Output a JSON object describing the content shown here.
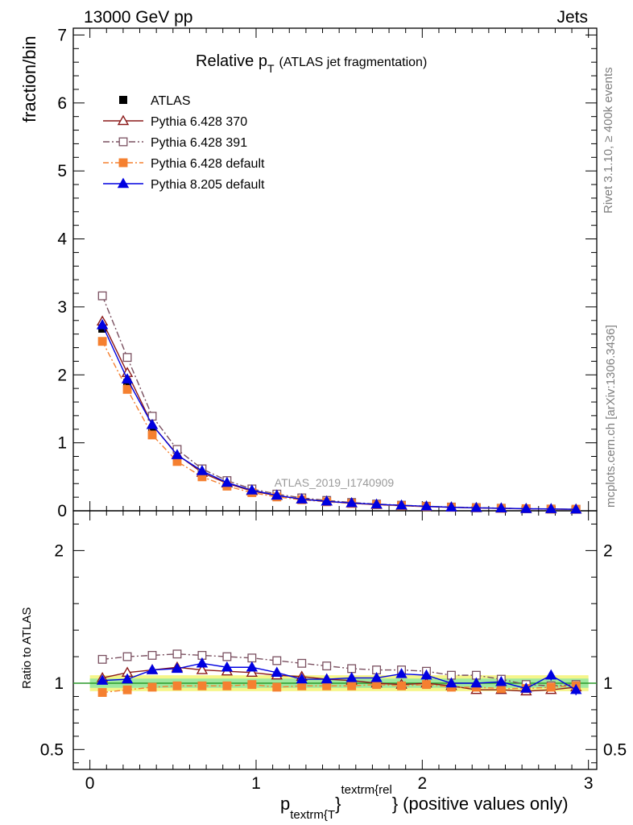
{
  "header": {
    "left": "13000 GeV pp",
    "right": "Jets"
  },
  "side_texts": {
    "rivet": "Rivet 3.1.10, ≥ 400k events",
    "mcplots": "mcplots.cern.ch [arXiv:1306.3436]"
  },
  "chart_data": {
    "type": "line",
    "title": {
      "prefix": "Relative p",
      "subscript": "T",
      "suffix": "(ATLAS jet fragmentation)"
    },
    "watermark": "ATLAS_2019_I1740909",
    "xlabel": {
      "main": "p",
      "sub": "textrm{T",
      "brace": "}",
      "sup": "textrm{rel",
      "brace2": "}",
      "rest": "(positive values only)"
    },
    "ylabel_main": "fraction/bin",
    "ylabel_ratio": "Ratio to ATLAS",
    "xlim": [
      -0.1,
      3.05
    ],
    "ylim_main": [
      0,
      7.1
    ],
    "ylim_ratio": [
      0.35,
      2.3
    ],
    "xticks": [
      0,
      1,
      2,
      3
    ],
    "xtick_labels": [
      "0",
      "1",
      "2",
      "3"
    ],
    "yticks_main": [
      0,
      1,
      2,
      3,
      4,
      5,
      6,
      7
    ],
    "ytick_labels_main": [
      "0",
      "1",
      "2",
      "3",
      "4",
      "5",
      "6",
      "7"
    ],
    "yticks_ratio": [
      0.5,
      1,
      2
    ],
    "ytick_labels_ratio": [
      "0.5",
      "1",
      "2"
    ],
    "x": [
      0.075,
      0.225,
      0.375,
      0.525,
      0.675,
      0.825,
      0.975,
      1.125,
      1.275,
      1.425,
      1.575,
      1.725,
      1.875,
      2.025,
      2.175,
      2.325,
      2.475,
      2.625,
      2.775,
      2.925
    ],
    "data": {
      "name": "ATLAS",
      "values": [
        2.68,
        1.88,
        1.15,
        0.74,
        0.51,
        0.37,
        0.27,
        0.21,
        0.165,
        0.135,
        0.11,
        0.09,
        0.075,
        0.062,
        0.052,
        0.044,
        0.037,
        0.031,
        0.026,
        0.022
      ],
      "band_halfwidth": 0.035,
      "band_outer_halfwidth": 0.06
    },
    "series": [
      {
        "name": "Pythia 6.428 370",
        "color": "#8b1a1a",
        "marker": "triangle-open",
        "dash": "",
        "ratio": [
          1.04,
          1.08,
          1.1,
          1.12,
          1.1,
          1.09,
          1.08,
          1.06,
          1.05,
          1.03,
          1.02,
          1.0,
          0.99,
          1.0,
          0.98,
          0.95,
          0.95,
          0.94,
          0.95,
          0.97
        ]
      },
      {
        "name": "Pythia 6.428 391",
        "color": "#7a5060",
        "marker": "square-open",
        "dash": "8,3,2,3",
        "ratio": [
          1.18,
          1.2,
          1.21,
          1.22,
          1.21,
          1.2,
          1.19,
          1.17,
          1.15,
          1.13,
          1.11,
          1.1,
          1.1,
          1.09,
          1.06,
          1.06,
          1.03,
          0.99,
          0.98,
          0.99
        ]
      },
      {
        "name": "Pythia 6.428 default",
        "color": "#f58030",
        "marker": "square-filled",
        "dash": "7,3,2,3",
        "ratio": [
          0.93,
          0.95,
          0.97,
          0.98,
          0.98,
          0.98,
          0.99,
          0.97,
          0.98,
          0.98,
          0.98,
          0.99,
          0.98,
          0.99,
          0.97,
          0.97,
          0.96,
          0.96,
          0.97,
          0.98
        ]
      },
      {
        "name": "Pythia 8.205 default",
        "color": "#0000e0",
        "marker": "triangle-filled",
        "dash": "",
        "ratio": [
          1.02,
          1.03,
          1.1,
          1.11,
          1.15,
          1.12,
          1.12,
          1.08,
          1.03,
          1.03,
          1.04,
          1.04,
          1.07,
          1.06,
          1.0,
          1.0,
          1.01,
          0.96,
          1.06,
          0.95
        ],
        "ratio_err": [
          0.01,
          0.01,
          0.01,
          0.01,
          0.01,
          0.01,
          0.01,
          0.01,
          0.01,
          0.01,
          0.01,
          0.02,
          0.02,
          0.03,
          0.02,
          0.03,
          0.03,
          0.03,
          0.04,
          0.04
        ]
      }
    ]
  }
}
